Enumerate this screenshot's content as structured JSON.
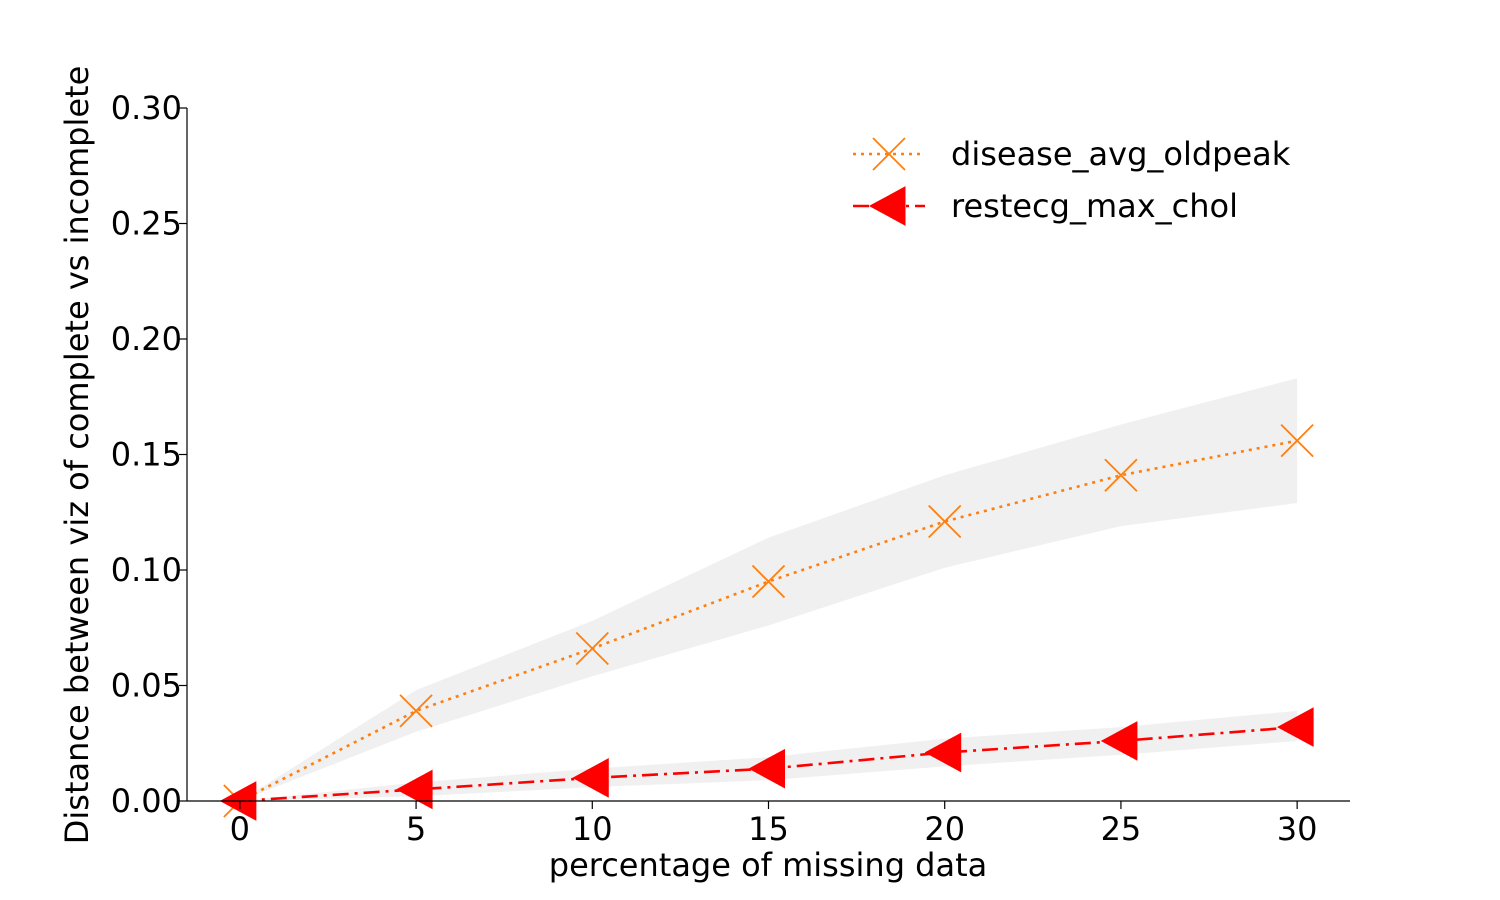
{
  "chart_data": {
    "type": "line",
    "title": "",
    "xlabel": "percentage of missing data",
    "ylabel": "Distance between viz of complete vs incomplete",
    "xlim": [
      -1.5,
      31.5
    ],
    "ylim": [
      0.0,
      0.3
    ],
    "xticks": [
      0,
      5,
      10,
      15,
      20,
      25,
      30
    ],
    "xtick_labels": [
      "0",
      "5",
      "10",
      "15",
      "20",
      "25",
      "30"
    ],
    "yticks": [
      0.0,
      0.05,
      0.1,
      0.15,
      0.2,
      0.25,
      0.3
    ],
    "ytick_labels": [
      "0.00",
      "0.05",
      "0.10",
      "0.15",
      "0.20",
      "0.25",
      "0.30"
    ],
    "grid": false,
    "legend_position": "top-right",
    "x": [
      0,
      5,
      10,
      15,
      20,
      25,
      30
    ],
    "series": [
      {
        "name": "disease_avg_oldpeak",
        "values": [
          0.0,
          0.039,
          0.066,
          0.095,
          0.121,
          0.141,
          0.156
        ],
        "band_low": [
          0.0,
          0.03,
          0.054,
          0.076,
          0.101,
          0.119,
          0.129
        ],
        "band_high": [
          0.0,
          0.048,
          0.078,
          0.114,
          0.141,
          0.163,
          0.183
        ],
        "color": "#ff7f0e",
        "linestyle": "dotted",
        "marker": "x"
      },
      {
        "name": "restecg_max_chol",
        "values": [
          0.0,
          0.005,
          0.01,
          0.014,
          0.021,
          0.026,
          0.032
        ],
        "band_low": [
          0.0,
          0.002,
          0.006,
          0.009,
          0.015,
          0.02,
          0.026
        ],
        "band_high": [
          0.0,
          0.008,
          0.014,
          0.019,
          0.027,
          0.032,
          0.039
        ],
        "color": "#ff0000",
        "linestyle": "dashdot",
        "marker": "triangle-left"
      }
    ],
    "band_color": "#d3d3d3"
  }
}
